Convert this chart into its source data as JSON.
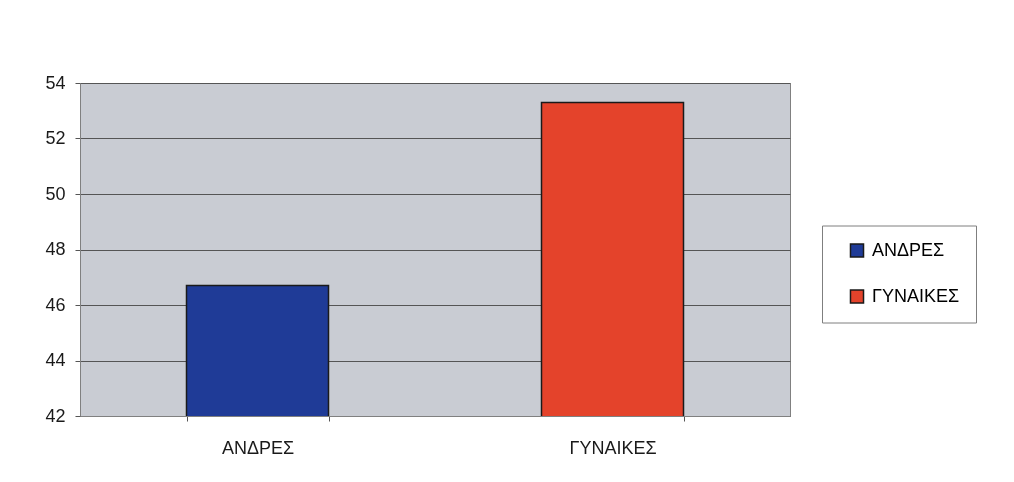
{
  "chart_data": {
    "type": "bar",
    "categories": [
      "ΑΝΔΡΕΣ",
      "ΓΥΝΑΙΚΕΣ"
    ],
    "stacked": true,
    "series": [
      {
        "name": "ΑΝΔΡΕΣ",
        "color": "#1f3b97",
        "values": [
          46.7,
          null
        ]
      },
      {
        "name": "ΓΥΝΑΙΚΕΣ",
        "color": "#e4432b",
        "values": [
          null,
          53.3
        ]
      }
    ],
    "ylim": [
      42,
      54
    ],
    "yticks": [
      42,
      44,
      46,
      48,
      50,
      52,
      54
    ],
    "grid": "y",
    "legend": "right"
  }
}
